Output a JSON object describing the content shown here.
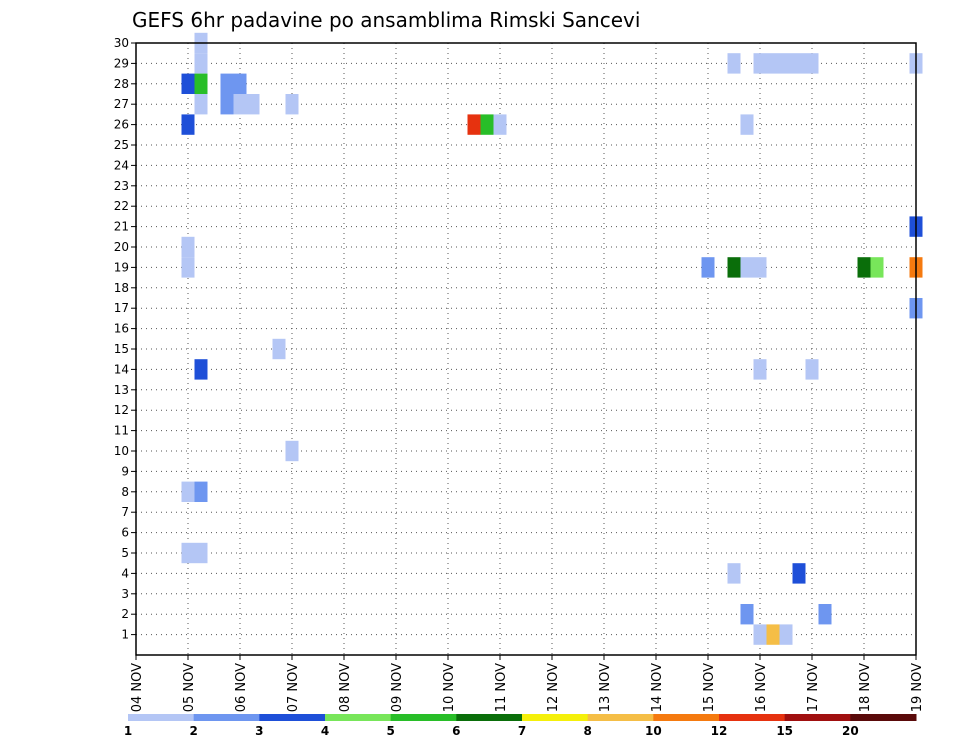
{
  "chart_data": {
    "type": "heatmap",
    "title": "GEFS 6hr padavine po ansamblima Rimski Sancevi",
    "xlabel": "",
    "ylabel": "",
    "x_ticks": [
      "04 NOV",
      "05 NOV",
      "06 NOV",
      "07 NOV",
      "08 NOV",
      "09 NOV",
      "10 NOV",
      "11 NOV",
      "12 NOV",
      "13 NOV",
      "14 NOV",
      "15 NOV",
      "16 NOV",
      "17 NOV",
      "18 NOV",
      "19 NOV"
    ],
    "y_ticks": [
      "1",
      "2",
      "3",
      "4",
      "5",
      "6",
      "7",
      "8",
      "9",
      "10",
      "11",
      "12",
      "13",
      "14",
      "15",
      "16",
      "17",
      "18",
      "19",
      "20",
      "21",
      "22",
      "23",
      "24",
      "25",
      "26",
      "27",
      "28",
      "29",
      "30"
    ],
    "xlim": [
      0,
      15
    ],
    "ylim": [
      0,
      30
    ],
    "grid": true,
    "colorbar": {
      "labels": [
        "1",
        "2",
        "3",
        "4",
        "5",
        "6",
        "7",
        "8",
        "10",
        "12",
        "15",
        "20"
      ],
      "colors": [
        "#b4c6f5",
        "#6e96f0",
        "#1e4fd8",
        "#78e65a",
        "#28be28",
        "#0a6e0a",
        "#f5f00a",
        "#f5be46",
        "#f57a0f",
        "#e6320f",
        "#a00f0f",
        "#5a0a0a"
      ]
    },
    "cells": [
      {
        "t": 1.25,
        "m": 29,
        "c": 0
      },
      {
        "t": 1.25,
        "m": 30,
        "c": 0
      },
      {
        "t": 1.0,
        "m": 28,
        "c": 2
      },
      {
        "t": 1.25,
        "m": 28,
        "c": 4
      },
      {
        "t": 1.25,
        "m": 27,
        "c": 0
      },
      {
        "t": 1.0,
        "m": 26,
        "c": 2
      },
      {
        "t": 1.75,
        "m": 28,
        "c": 1
      },
      {
        "t": 2.0,
        "m": 28,
        "c": 1
      },
      {
        "t": 1.75,
        "m": 27,
        "c": 1
      },
      {
        "t": 2.0,
        "m": 27,
        "c": 0
      },
      {
        "t": 2.25,
        "m": 27,
        "c": 0
      },
      {
        "t": 3.0,
        "m": 27,
        "c": 0
      },
      {
        "t": 6.5,
        "m": 26,
        "c": 9
      },
      {
        "t": 6.75,
        "m": 26,
        "c": 4
      },
      {
        "t": 7.0,
        "m": 26,
        "c": 0
      },
      {
        "t": 11.5,
        "m": 29,
        "c": 0
      },
      {
        "t": 12.0,
        "m": 29,
        "c": 0
      },
      {
        "t": 12.25,
        "m": 29,
        "c": 0
      },
      {
        "t": 12.5,
        "m": 29,
        "c": 0
      },
      {
        "t": 12.75,
        "m": 29,
        "c": 0
      },
      {
        "t": 13.0,
        "m": 29,
        "c": 0
      },
      {
        "t": 15.0,
        "m": 29,
        "c": 0
      },
      {
        "t": 11.75,
        "m": 26,
        "c": 0
      },
      {
        "t": 1.0,
        "m": 20,
        "c": 0
      },
      {
        "t": 1.0,
        "m": 19,
        "c": 0
      },
      {
        "t": 15.0,
        "m": 21,
        "c": 2
      },
      {
        "t": 11.0,
        "m": 19,
        "c": 1
      },
      {
        "t": 11.5,
        "m": 19,
        "c": 5
      },
      {
        "t": 11.75,
        "m": 19,
        "c": 0
      },
      {
        "t": 12.0,
        "m": 19,
        "c": 0
      },
      {
        "t": 14.0,
        "m": 19,
        "c": 5
      },
      {
        "t": 14.25,
        "m": 19,
        "c": 3
      },
      {
        "t": 15.0,
        "m": 19,
        "c": 8
      },
      {
        "t": 15.0,
        "m": 17,
        "c": 1
      },
      {
        "t": 2.75,
        "m": 15,
        "c": 0
      },
      {
        "t": 1.25,
        "m": 14,
        "c": 2
      },
      {
        "t": 12.0,
        "m": 14,
        "c": 0
      },
      {
        "t": 13.0,
        "m": 14,
        "c": 0
      },
      {
        "t": 3.0,
        "m": 10,
        "c": 0
      },
      {
        "t": 1.0,
        "m": 8,
        "c": 0
      },
      {
        "t": 1.25,
        "m": 8,
        "c": 1
      },
      {
        "t": 1.0,
        "m": 5,
        "c": 0
      },
      {
        "t": 1.25,
        "m": 5,
        "c": 0
      },
      {
        "t": 11.5,
        "m": 4,
        "c": 0
      },
      {
        "t": 12.75,
        "m": 4,
        "c": 2
      },
      {
        "t": 11.75,
        "m": 2,
        "c": 1
      },
      {
        "t": 13.25,
        "m": 2,
        "c": 1
      },
      {
        "t": 12.0,
        "m": 1,
        "c": 0
      },
      {
        "t": 12.25,
        "m": 1,
        "c": 7
      },
      {
        "t": 12.5,
        "m": 1,
        "c": 0
      }
    ]
  }
}
